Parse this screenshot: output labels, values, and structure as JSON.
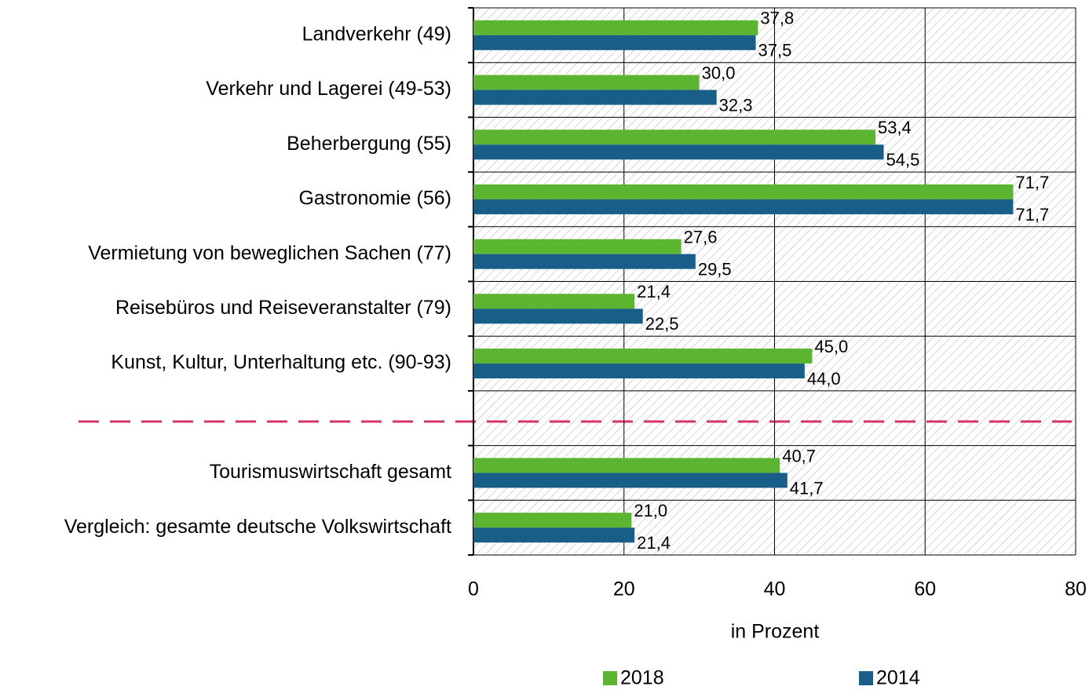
{
  "chart_data": {
    "type": "hbar",
    "categories": [
      "Landverkehr (49)",
      "Verkehr und Lagerei (49-53)",
      "Beherbergung (55)",
      "Gastronomie (56)",
      "Vermietung von beweglichen Sachen (77)",
      "Reisebüros und Reiseveranstalter (79)",
      "Kunst, Kultur, Unterhaltung etc. (90-93)",
      null,
      "Tourismuswirtschaft gesamt",
      "Vergleich: gesamte deutsche Volkswirtschaft"
    ],
    "series": [
      {
        "name": "2018",
        "color": "#5cb531",
        "values": [
          37.8,
          30.0,
          53.4,
          71.7,
          27.6,
          21.4,
          45.0,
          null,
          40.7,
          21.0
        ],
        "value_labels": [
          "37,8",
          "30,0",
          "53,4",
          "71,7",
          "27,6",
          "21,4",
          "45,0",
          null,
          "40,7",
          "21,0"
        ]
      },
      {
        "name": "2014",
        "color": "#195e88",
        "values": [
          37.5,
          32.3,
          54.5,
          71.7,
          29.5,
          22.5,
          44.0,
          null,
          41.7,
          21.4
        ],
        "value_labels": [
          "37,5",
          "32,3",
          "54,5",
          "71,7",
          "29,5",
          "22,5",
          "44,0",
          null,
          "41,7",
          "21,4"
        ]
      }
    ],
    "xlim": [
      0,
      80
    ],
    "xticks": [
      0,
      20,
      40,
      60,
      80
    ],
    "xlabel": "in Prozent",
    "grid": true,
    "legend": "bottom"
  }
}
